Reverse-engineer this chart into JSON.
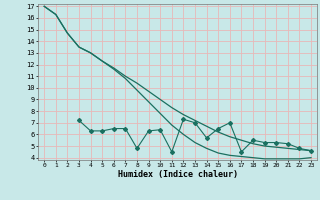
{
  "xlabel": "Humidex (Indice chaleur)",
  "bg_color": "#c8e8e8",
  "grid_color": "#e8b8b8",
  "line_color": "#1a7060",
  "x_values": [
    0,
    1,
    2,
    3,
    4,
    5,
    6,
    7,
    8,
    9,
    10,
    11,
    12,
    13,
    14,
    15,
    16,
    17,
    18,
    19,
    20,
    21,
    22,
    23
  ],
  "line1": [
    17.0,
    16.3,
    14.7,
    13.5,
    13.0,
    12.3,
    11.7,
    11.0,
    10.4,
    9.7,
    9.0,
    8.3,
    7.7,
    7.2,
    6.7,
    6.2,
    5.8,
    5.5,
    5.2,
    5.0,
    4.9,
    4.8,
    4.7,
    4.6
  ],
  "line2": [
    17.0,
    16.3,
    14.7,
    13.5,
    13.0,
    12.3,
    11.6,
    10.8,
    9.8,
    8.8,
    7.8,
    6.8,
    6.0,
    5.3,
    4.8,
    4.4,
    4.2,
    4.1,
    4.0,
    3.9,
    3.9,
    3.9,
    3.9,
    4.0
  ],
  "line3": [
    null,
    null,
    null,
    7.2,
    6.3,
    6.3,
    6.5,
    6.5,
    4.8,
    6.3,
    6.4,
    4.5,
    7.3,
    7.0,
    5.7,
    6.5,
    7.0,
    4.5,
    5.5,
    5.3,
    5.3,
    5.2,
    4.8,
    4.6
  ],
  "ylim": [
    4,
    17
  ],
  "xlim": [
    -0.5,
    23.5
  ],
  "yticks": [
    4,
    5,
    6,
    7,
    8,
    9,
    10,
    11,
    12,
    13,
    14,
    15,
    16,
    17
  ],
  "xticks": [
    0,
    1,
    2,
    3,
    4,
    5,
    6,
    7,
    8,
    9,
    10,
    11,
    12,
    13,
    14,
    15,
    16,
    17,
    18,
    19,
    20,
    21,
    22,
    23
  ]
}
